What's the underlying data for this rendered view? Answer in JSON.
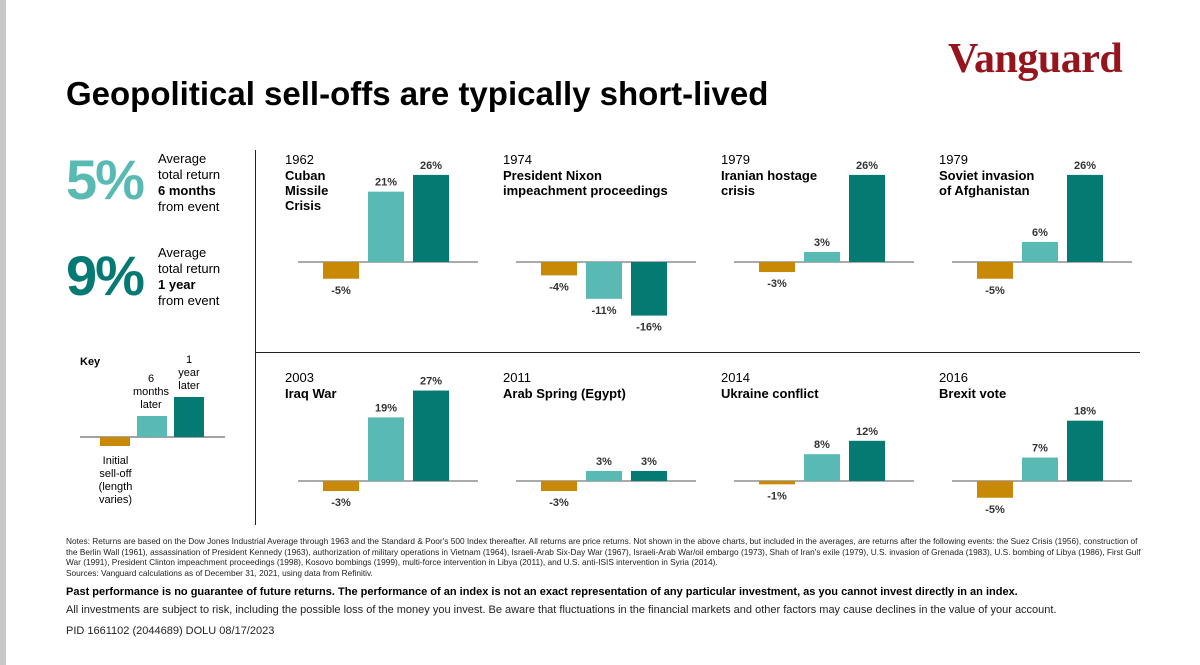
{
  "logo": "Vanguard",
  "title": "Geopolitical sell-offs are typically short-lived",
  "stats": [
    {
      "pct": "5%",
      "line1": "Average",
      "line2": "total return",
      "line3": "6 months",
      "line4": "from event",
      "color": "#59bab3"
    },
    {
      "pct": "9%",
      "line1": "Average",
      "line2": "total return",
      "line3": "1 year",
      "line4": "from event",
      "color": "#047a72"
    }
  ],
  "key": {
    "title": "Key",
    "initial": "Initial\nsell-off\n(length\nvaries)",
    "six_months": "6\nmonths\nlater",
    "one_year": "1\nyear\nlater"
  },
  "colors": {
    "initial": "#c88a06",
    "six_months": "#59bab3",
    "one_year": "#047a72"
  },
  "chart_data": [
    {
      "type": "bar",
      "year": "1962",
      "event": "Cuban\nMissile\nCrisis",
      "values": [
        -5,
        21,
        26
      ],
      "labels": [
        "-5%",
        "21%",
        "26%"
      ]
    },
    {
      "type": "bar",
      "year": "1974",
      "event": "President Nixon\nimpeachment proceedings",
      "values": [
        -4,
        -11,
        -16
      ],
      "labels": [
        "-4%",
        "-11%",
        "-16%"
      ]
    },
    {
      "type": "bar",
      "year": "1979",
      "event": "Iranian hostage\ncrisis",
      "values": [
        -3,
        3,
        26
      ],
      "labels": [
        "-3%",
        "3%",
        "26%"
      ]
    },
    {
      "type": "bar",
      "year": "1979",
      "event": "Soviet invasion\nof Afghanistan",
      "values": [
        -5,
        6,
        26
      ],
      "labels": [
        "-5%",
        "6%",
        "26%"
      ]
    },
    {
      "type": "bar",
      "year": "2003",
      "event": "Iraq War",
      "values": [
        -3,
        19,
        27
      ],
      "labels": [
        "-3%",
        "19%",
        "27%"
      ]
    },
    {
      "type": "bar",
      "year": "2011",
      "event": "Arab Spring (Egypt)",
      "values": [
        -3,
        3,
        3
      ],
      "labels": [
        "-3%",
        "3%",
        "3%"
      ]
    },
    {
      "type": "bar",
      "year": "2014",
      "event": "Ukraine conflict",
      "values": [
        -1,
        8,
        12
      ],
      "labels": [
        "-1%",
        "8%",
        "12%"
      ]
    },
    {
      "type": "bar",
      "year": "2016",
      "event": "Brexit vote",
      "values": [
        -5,
        7,
        18
      ],
      "labels": [
        "-5%",
        "7%",
        "18%"
      ]
    }
  ],
  "notes": "Notes: Returns are based on the Dow Jones Industrial Average through 1963 and the Standard & Poor's 500 Index thereafter. All returns are price returns. Not shown in the above charts, but included in the averages, are returns after the following events: the Suez Crisis (1956), construction of the Berlin Wall (1961), assassination of President Kennedy (1963), authorization of military operations in Vietnam (1964), Israeli-Arab Six-Day War (1967), Israeli-Arab War/oil embargo (1973), Shah of Iran's exile (1979), U.S. invasion of Grenada (1983), U.S. bombing of Libya (1986), First Gulf War (1991), President Clinton impeachment proceedings (1998), Kosovo bombings (1999), multi-force intervention in Libya (2011), and U.S. anti-ISIS intervention in Syria (2014).",
  "sources": "Sources: Vanguard calculations as of December 31, 2021, using data from Refinitiv.",
  "disclaimer_bold": "Past performance is no guarantee of future returns. The performance of an index is not an exact representation of any particular investment, as you cannot invest directly in an index.",
  "disclaimer": "All investments are subject to risk, including the possible loss of the money you invest. Be aware that fluctuations in the financial markets and other factors may cause declines in the value of your account.",
  "pid": "PID 1661102 (2044689) DOLU 08/17/2023"
}
